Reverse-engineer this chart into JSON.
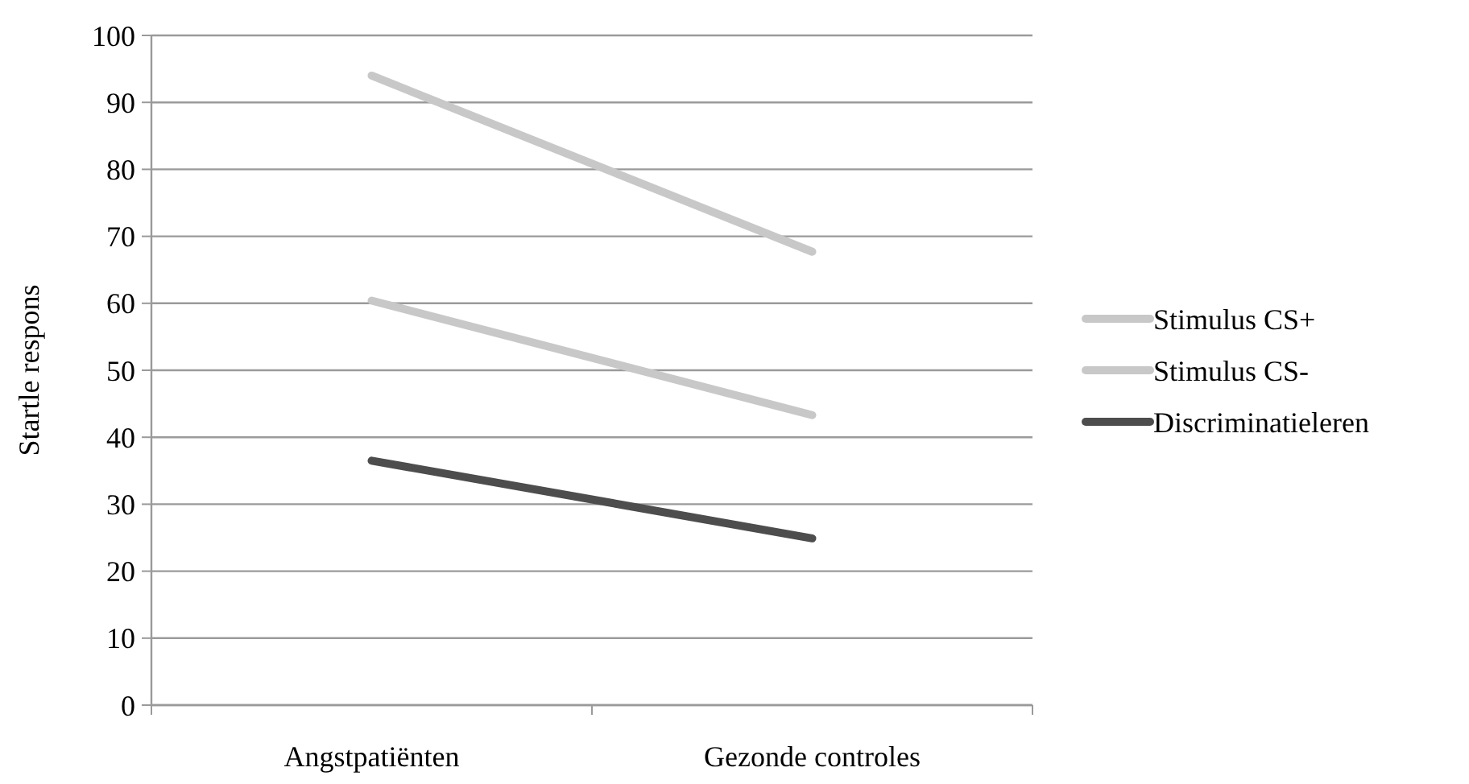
{
  "chart_data": {
    "type": "line",
    "ylabel": "Startle respons",
    "categories": [
      "Angstpatiënten",
      "Gezonde controles"
    ],
    "series": [
      {
        "name": "Stimulus CS+",
        "color": "#c8c8c8",
        "values": [
          94,
          67.7
        ]
      },
      {
        "name": "Stimulus CS-",
        "color": "#c8c8c8",
        "values": [
          60.4,
          43.3
        ]
      },
      {
        "name": "Discriminatieleren",
        "color": "#4d4d4d",
        "values": [
          36.5,
          24.9
        ]
      }
    ],
    "ylim": [
      0,
      100
    ],
    "yticks": [
      0,
      10,
      20,
      30,
      40,
      50,
      60,
      70,
      80,
      90,
      100
    ],
    "grid": "y",
    "legend": "right",
    "marker": "none",
    "line_style": "solid"
  }
}
